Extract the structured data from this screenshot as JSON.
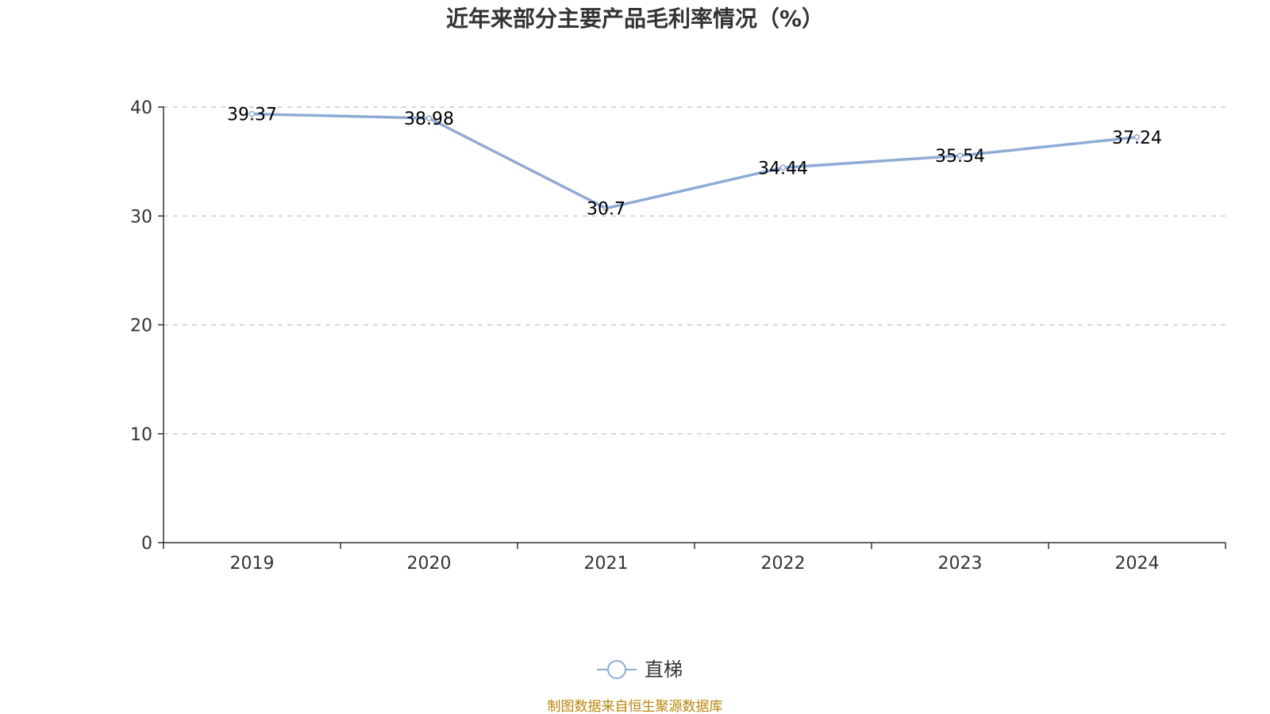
{
  "chart_data": {
    "type": "line",
    "title": "近年来部分主要产品毛利率情况（%）",
    "categories": [
      "2019",
      "2020",
      "2021",
      "2022",
      "2023",
      "2024"
    ],
    "series": [
      {
        "name": "直梯",
        "values": [
          39.37,
          38.98,
          30.7,
          34.44,
          35.54,
          37.24
        ],
        "labels": [
          "39.37",
          "38.98",
          "30.7",
          "34.44",
          "35.54",
          "37.24"
        ]
      }
    ],
    "ylim": [
      0,
      40
    ],
    "yticks": [
      "0",
      "10",
      "20",
      "30",
      "40"
    ],
    "grid": true,
    "legend_position": "bottom",
    "line_color": "#8eabd6",
    "grid_color": "#cccccc",
    "axis_color": "#333333"
  },
  "source_note": "制图数据来自恒生聚源数据库"
}
